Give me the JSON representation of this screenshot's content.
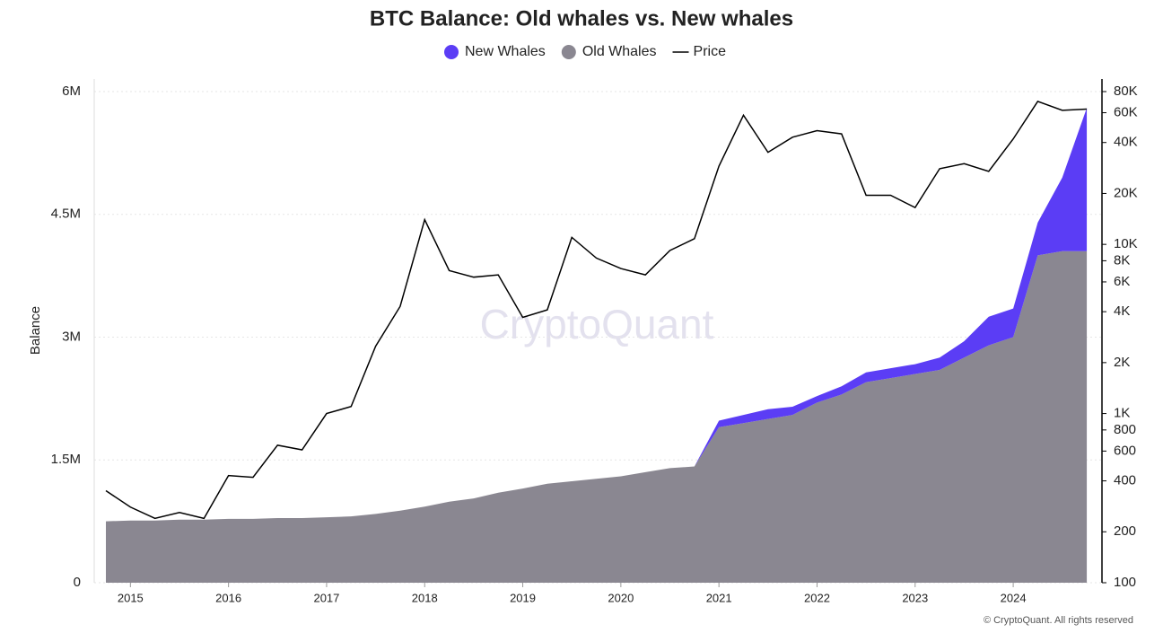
{
  "chart_data": {
    "type": "stacked-area-line",
    "title": "BTC Balance: Old whales vs. New whales",
    "y_label": "Balance",
    "watermark": "CryptoQuant",
    "footer": "© CryptoQuant. All rights reserved",
    "x": [
      2014.75,
      2015,
      2015.25,
      2015.5,
      2015.75,
      2016,
      2016.25,
      2016.5,
      2016.75,
      2017,
      2017.25,
      2017.5,
      2017.75,
      2018,
      2018.25,
      2018.5,
      2018.75,
      2019,
      2019.25,
      2019.5,
      2019.75,
      2020,
      2020.25,
      2020.5,
      2020.75,
      2021,
      2021.25,
      2021.5,
      2021.75,
      2022,
      2022.25,
      2022.5,
      2022.75,
      2023,
      2023.25,
      2023.5,
      2023.75,
      2024,
      2024.25,
      2024.5,
      2024.75
    ],
    "xlim": [
      2014.75,
      2024.85
    ],
    "xticks": [
      2015,
      2016,
      2017,
      2018,
      2019,
      2020,
      2021,
      2022,
      2023,
      2024
    ],
    "ylim": [
      0,
      6000000
    ],
    "yticks": [
      0,
      {
        "value": 1500000,
        "label": "1.5M"
      },
      {
        "value": 3000000,
        "label": "3M"
      },
      {
        "value": 4500000,
        "label": "4.5M"
      },
      {
        "value": 6000000,
        "label": "6M"
      }
    ],
    "y2lim": [
      100,
      80000
    ],
    "y2_log": true,
    "y2ticks": [
      100,
      200,
      400,
      600,
      800,
      {
        "value": 1000,
        "label": "1K"
      },
      {
        "value": 2000,
        "label": "2K"
      },
      {
        "value": 4000,
        "label": "4K"
      },
      {
        "value": 6000,
        "label": "6K"
      },
      {
        "value": 8000,
        "label": "8K"
      },
      {
        "value": 10000,
        "label": "10K"
      },
      {
        "value": 20000,
        "label": "20K"
      },
      {
        "value": 40000,
        "label": "40K"
      },
      {
        "value": 60000,
        "label": "60K"
      },
      {
        "value": 80000,
        "label": "80K"
      }
    ],
    "grid": true,
    "series": [
      {
        "name": "New Whales",
        "color": "#5b3df5",
        "kind": "area",
        "stack": 1,
        "values": [
          0,
          0,
          0,
          0,
          0,
          0,
          0,
          0,
          0,
          0,
          0,
          0,
          0,
          0,
          0,
          0,
          0,
          0,
          0,
          0,
          0,
          0,
          0,
          0,
          0,
          80000,
          100000,
          120000,
          100000,
          80000,
          100000,
          120000,
          120000,
          120000,
          150000,
          200000,
          350000,
          350000,
          400000,
          900000,
          1750000
        ]
      },
      {
        "name": "Old Whales",
        "color": "#8a8791",
        "kind": "area",
        "stack": 0,
        "values": [
          750000,
          760000,
          760000,
          770000,
          770000,
          780000,
          780000,
          790000,
          790000,
          800000,
          810000,
          840000,
          880000,
          930000,
          990000,
          1030000,
          1100000,
          1150000,
          1210000,
          1240000,
          1270000,
          1300000,
          1350000,
          1400000,
          1420000,
          1900000,
          1950000,
          2000000,
          2050000,
          2200000,
          2300000,
          2450000,
          2500000,
          2550000,
          2600000,
          2750000,
          2900000,
          3000000,
          4000000,
          4050000,
          4050000
        ]
      },
      {
        "name": "Price",
        "color": "#000000",
        "kind": "line",
        "axis": "y2",
        "values": [
          350,
          280,
          240,
          260,
          240,
          430,
          420,
          650,
          610,
          1000,
          1100,
          2500,
          4300,
          14000,
          7000,
          6400,
          6600,
          3700,
          4100,
          11000,
          8300,
          7200,
          6600,
          9200,
          10800,
          29000,
          58000,
          35000,
          43000,
          47000,
          45000,
          19500,
          19500,
          16500,
          28000,
          30000,
          27000,
          42000,
          70000,
          62000,
          63000
        ]
      }
    ]
  }
}
